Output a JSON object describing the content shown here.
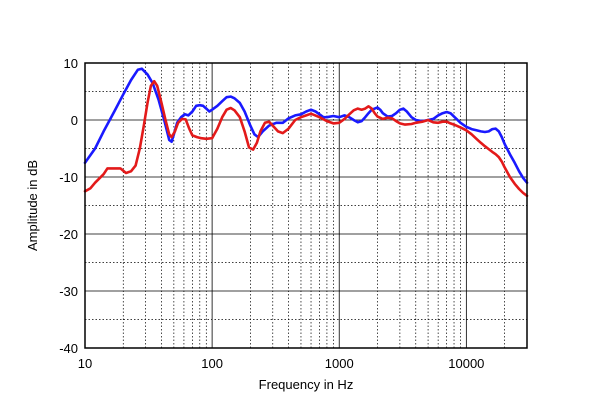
{
  "chart_data": {
    "type": "line",
    "title": "",
    "xlabel": "Frequency in Hz",
    "ylabel": "Amplitude in dB",
    "x_scale": "log",
    "xlim": [
      10,
      30000
    ],
    "ylim": [
      -40,
      10
    ],
    "grid": true,
    "x_ticks": [
      {
        "value": 10,
        "label": "10"
      },
      {
        "value": 100,
        "label": "100"
      },
      {
        "value": 1000,
        "label": "1000"
      },
      {
        "value": 10000,
        "label": "10000"
      }
    ],
    "y_ticks": [
      {
        "value": 10,
        "label": "10"
      },
      {
        "value": 0,
        "label": "0"
      },
      {
        "value": -10,
        "label": "-10"
      },
      {
        "value": -20,
        "label": "-20"
      },
      {
        "value": -30,
        "label": "-30"
      },
      {
        "value": -40,
        "label": "-40"
      }
    ],
    "series": [
      {
        "color": "#1a1aff",
        "points": [
          [
            10,
            -7.5
          ],
          [
            12,
            -5
          ],
          [
            14,
            -2
          ],
          [
            17,
            1.5
          ],
          [
            20,
            4.5
          ],
          [
            23,
            7
          ],
          [
            26,
            8.8
          ],
          [
            28,
            9
          ],
          [
            31,
            8
          ],
          [
            34,
            6.5
          ],
          [
            38,
            3.5
          ],
          [
            42,
            0
          ],
          [
            46,
            -3.5
          ],
          [
            48,
            -3.8
          ],
          [
            50,
            -2.5
          ],
          [
            53,
            -0.5
          ],
          [
            57,
            0.5
          ],
          [
            61,
            1
          ],
          [
            65,
            0.8
          ],
          [
            70,
            1.5
          ],
          [
            75,
            2.5
          ],
          [
            80,
            2.6
          ],
          [
            85,
            2.5
          ],
          [
            90,
            2
          ],
          [
            95,
            1.5
          ],
          [
            100,
            1.8
          ],
          [
            110,
            2.5
          ],
          [
            120,
            3.3
          ],
          [
            130,
            4
          ],
          [
            140,
            4.1
          ],
          [
            150,
            3.8
          ],
          [
            165,
            3
          ],
          [
            180,
            1.5
          ],
          [
            200,
            -1
          ],
          [
            215,
            -2.5
          ],
          [
            230,
            -3
          ],
          [
            250,
            -2
          ],
          [
            280,
            -1
          ],
          [
            320,
            -0.5
          ],
          [
            360,
            -0.5
          ],
          [
            400,
            0.3
          ],
          [
            450,
            0.8
          ],
          [
            500,
            1
          ],
          [
            550,
            1.5
          ],
          [
            600,
            1.8
          ],
          [
            650,
            1.5
          ],
          [
            700,
            1
          ],
          [
            750,
            0.5
          ],
          [
            800,
            0.5
          ],
          [
            900,
            0.7
          ],
          [
            1000,
            0.5
          ],
          [
            1100,
            0.8
          ],
          [
            1200,
            0.5
          ],
          [
            1300,
            0
          ],
          [
            1400,
            -0.4
          ],
          [
            1500,
            -0.2
          ],
          [
            1600,
            0.5
          ],
          [
            1700,
            1.2
          ],
          [
            1800,
            1.8
          ],
          [
            1900,
            2
          ],
          [
            2000,
            2.2
          ],
          [
            2100,
            1.8
          ],
          [
            2200,
            1.2
          ],
          [
            2400,
            0.6
          ],
          [
            2600,
            0.7
          ],
          [
            2800,
            1.2
          ],
          [
            3000,
            1.8
          ],
          [
            3200,
            2
          ],
          [
            3400,
            1.5
          ],
          [
            3700,
            0.5
          ],
          [
            4000,
            0
          ],
          [
            4500,
            -0.2
          ],
          [
            5000,
            0
          ],
          [
            5500,
            0.2
          ],
          [
            6000,
            0.8
          ],
          [
            6500,
            1.2
          ],
          [
            7000,
            1.4
          ],
          [
            7500,
            1.2
          ],
          [
            8000,
            0.6
          ],
          [
            9000,
            -0.5
          ],
          [
            10000,
            -1.2
          ],
          [
            11000,
            -1.6
          ],
          [
            12000,
            -1.8
          ],
          [
            13000,
            -2
          ],
          [
            14000,
            -2.1
          ],
          [
            15000,
            -2
          ],
          [
            16000,
            -1.6
          ],
          [
            17000,
            -1.5
          ],
          [
            18000,
            -2
          ],
          [
            19000,
            -3
          ],
          [
            20000,
            -4.2
          ],
          [
            22000,
            -6
          ],
          [
            24000,
            -7.5
          ],
          [
            26000,
            -9
          ],
          [
            28000,
            -10.2
          ],
          [
            30000,
            -11
          ]
        ]
      },
      {
        "color": "#e31a1a",
        "points": [
          [
            10,
            -12.5
          ],
          [
            11,
            -12
          ],
          [
            12,
            -11
          ],
          [
            14,
            -9.5
          ],
          [
            15,
            -8.5
          ],
          [
            17,
            -8.5
          ],
          [
            19,
            -8.5
          ],
          [
            21,
            -9.3
          ],
          [
            23,
            -9
          ],
          [
            25,
            -8
          ],
          [
            27,
            -5
          ],
          [
            29,
            -1
          ],
          [
            31,
            3
          ],
          [
            33,
            6
          ],
          [
            35,
            6.8
          ],
          [
            37,
            6
          ],
          [
            40,
            3
          ],
          [
            43,
            0
          ],
          [
            46,
            -2.5
          ],
          [
            48,
            -3
          ],
          [
            51,
            -2
          ],
          [
            54,
            -0.5
          ],
          [
            58,
            0.2
          ],
          [
            62,
            0.1
          ],
          [
            66,
            -1.5
          ],
          [
            70,
            -2.7
          ],
          [
            76,
            -3
          ],
          [
            82,
            -3.2
          ],
          [
            90,
            -3.3
          ],
          [
            100,
            -3.2
          ],
          [
            110,
            -1.5
          ],
          [
            120,
            0.5
          ],
          [
            130,
            1.8
          ],
          [
            140,
            2.1
          ],
          [
            150,
            1.7
          ],
          [
            165,
            0.5
          ],
          [
            180,
            -2
          ],
          [
            195,
            -4.8
          ],
          [
            210,
            -5.2
          ],
          [
            225,
            -4
          ],
          [
            240,
            -2
          ],
          [
            260,
            -0.5
          ],
          [
            280,
            -0.3
          ],
          [
            300,
            -1
          ],
          [
            330,
            -2
          ],
          [
            360,
            -2.3
          ],
          [
            400,
            -1.5
          ],
          [
            450,
            0
          ],
          [
            500,
            0.5
          ],
          [
            550,
            0.8
          ],
          [
            600,
            1.1
          ],
          [
            700,
            0.5
          ],
          [
            800,
            -0.2
          ],
          [
            900,
            -0.6
          ],
          [
            1000,
            -0.5
          ],
          [
            1100,
            0.2
          ],
          [
            1200,
            1
          ],
          [
            1300,
            1.7
          ],
          [
            1400,
            2
          ],
          [
            1500,
            1.8
          ],
          [
            1600,
            2
          ],
          [
            1700,
            2.4
          ],
          [
            1800,
            2
          ],
          [
            1900,
            1.2
          ],
          [
            2000,
            0.6
          ],
          [
            2200,
            0.2
          ],
          [
            2400,
            0.4
          ],
          [
            2600,
            0.3
          ],
          [
            2800,
            -0.2
          ],
          [
            3000,
            -0.6
          ],
          [
            3300,
            -0.8
          ],
          [
            3700,
            -0.7
          ],
          [
            4000,
            -0.5
          ],
          [
            4500,
            -0.3
          ],
          [
            5000,
            0
          ],
          [
            5500,
            -0.4
          ],
          [
            6000,
            -0.5
          ],
          [
            6500,
            -0.3
          ],
          [
            7000,
            -0.3
          ],
          [
            7500,
            -0.6
          ],
          [
            8000,
            -0.8
          ],
          [
            9000,
            -1.3
          ],
          [
            10000,
            -1.8
          ],
          [
            11000,
            -2.5
          ],
          [
            12000,
            -3.3
          ],
          [
            13000,
            -4
          ],
          [
            14000,
            -4.6
          ],
          [
            15000,
            -5.1
          ],
          [
            16000,
            -5.6
          ],
          [
            17000,
            -6
          ],
          [
            18000,
            -6.5
          ],
          [
            19000,
            -7.3
          ],
          [
            20000,
            -8.3
          ],
          [
            22000,
            -10
          ],
          [
            24000,
            -11.2
          ],
          [
            26000,
            -12.1
          ],
          [
            28000,
            -12.8
          ],
          [
            30000,
            -13.3
          ]
        ]
      }
    ]
  }
}
